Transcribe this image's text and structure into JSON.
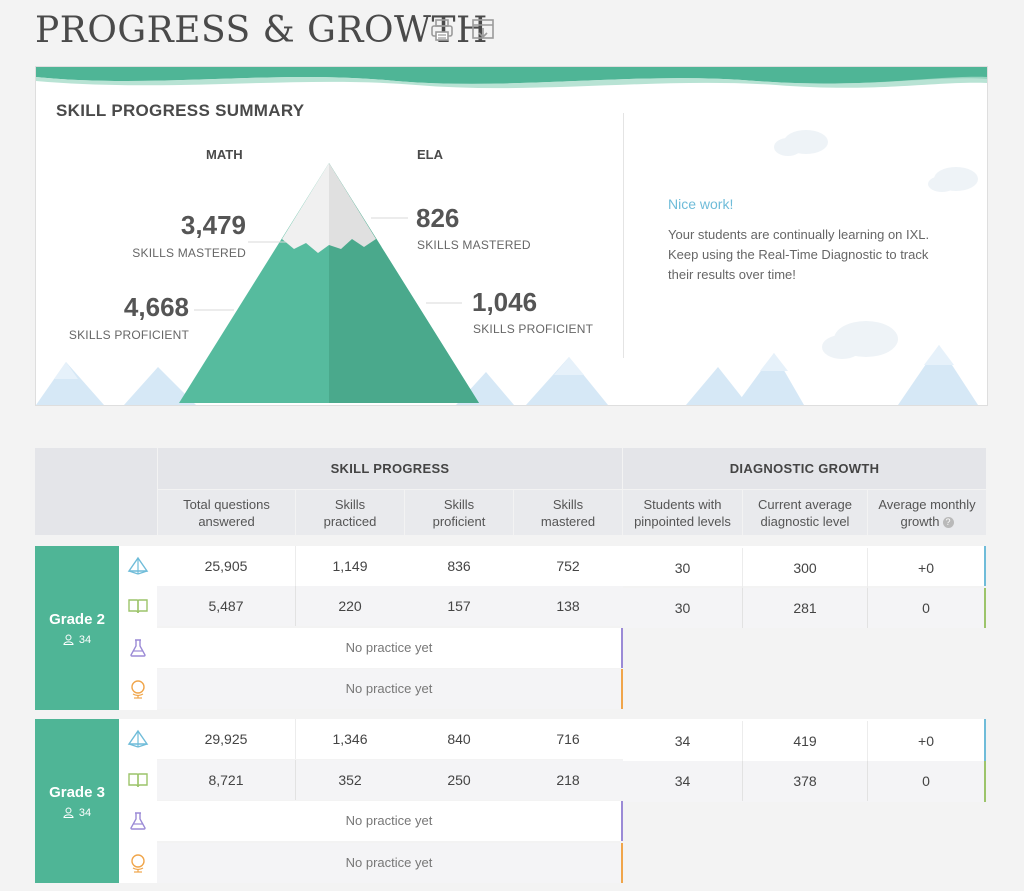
{
  "page": {
    "title": "PROGRESS & GROWTH",
    "icons": [
      "print-icon",
      "export-icon"
    ]
  },
  "summary": {
    "title": "SKILL PROGRESS SUMMARY",
    "math": {
      "label": "MATH",
      "mastered_value": "3,479",
      "mastered_label": "SKILLS MASTERED",
      "proficient_value": "4,668",
      "proficient_label": "SKILLS PROFICIENT"
    },
    "ela": {
      "label": "ELA",
      "mastered_value": "826",
      "mastered_label": "SKILLS MASTERED",
      "proficient_value": "1,046",
      "proficient_label": "SKILLS PROFICIENT"
    },
    "message_title": "Nice work!",
    "message_body": "Your students are continually learning on IXL. Keep using the Real-Time Diagnostic to track their results over time!"
  },
  "table": {
    "groups": {
      "skill_progress": "SKILL PROGRESS",
      "diagnostic_growth": "DIAGNOSTIC GROWTH"
    },
    "columns": {
      "total_questions": "Total questions answered",
      "skills_practiced": "Skills practiced",
      "skills_proficient": "Skills proficient",
      "skills_mastered": "Skills mastered",
      "students_pinpointed": "Students with pinpointed levels",
      "current_avg": "Current average diagnostic level",
      "avg_growth": "Average monthly growth",
      "info_mark": "?"
    },
    "no_practice": "No practice yet",
    "grades": [
      {
        "name": "Grade 2",
        "students": "34",
        "math": {
          "total": "25,905",
          "practiced": "1,149",
          "proficient": "836",
          "mastered": "752"
        },
        "ela": {
          "total": "5,487",
          "practiced": "220",
          "proficient": "157",
          "mastered": "138"
        },
        "diag_math": {
          "students": "30",
          "current": "300",
          "growth": "+0"
        },
        "diag_ela": {
          "students": "30",
          "current": "281",
          "growth": "0"
        }
      },
      {
        "name": "Grade 3",
        "students": "34",
        "math": {
          "total": "29,925",
          "practiced": "1,346",
          "proficient": "840",
          "mastered": "716"
        },
        "ela": {
          "total": "8,721",
          "practiced": "352",
          "proficient": "250",
          "mastered": "218"
        },
        "diag_math": {
          "students": "34",
          "current": "419",
          "growth": "+0"
        },
        "diag_ela": {
          "students": "34",
          "current": "378",
          "growth": "0"
        }
      }
    ]
  },
  "colors": {
    "accent_green": "#4fb596",
    "math_blue": "#6fbcd9",
    "ela_green": "#9cc46a",
    "science_purple": "#9b8ad6",
    "social_orange": "#f0a54a"
  }
}
